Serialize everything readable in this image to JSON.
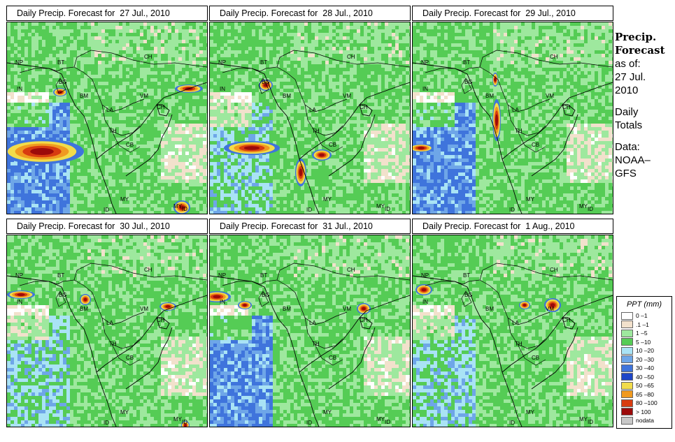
{
  "panels": [
    {
      "title": "Daily Precip. Forecast for  27 Jul., 2010"
    },
    {
      "title": "Daily Precip. Forecast for  28 Jul., 2010"
    },
    {
      "title": "Daily Precip. Forecast for  29 Jul., 2010"
    },
    {
      "title": "Daily Precip. Forecast for  30 Jul., 2010"
    },
    {
      "title": "Daily Precip. Forecast for  31 Jul., 2010"
    },
    {
      "title": "Daily Precip. Forecast for  1 Aug., 2010"
    }
  ],
  "map_labels": [
    "NP",
    "BT",
    "BG",
    "IN",
    "BM",
    "CH",
    "VM",
    "LA",
    "TH",
    "CB",
    "CH",
    "MY",
    "MY",
    "ID",
    "ID"
  ],
  "info": {
    "heading1": "Precip.",
    "heading2": "Forecast",
    "line1": "as of:",
    "line2": "27 Jul.",
    "line3": "2010",
    "line4": "Daily",
    "line5": "Totals",
    "line6": "Data:",
    "line7": "NOAA–",
    "line8": "GFS"
  },
  "legend": {
    "title": "PPT (mm)",
    "items": [
      {
        "label": "0 –1",
        "color": "#ffffff"
      },
      {
        "label": ".1 –1",
        "color": "#f2e1cc"
      },
      {
        "label": "1 –5",
        "color": "#9ee89e"
      },
      {
        "label": "5 –10",
        "color": "#55cc55"
      },
      {
        "label": "10 –20",
        "color": "#a9e3f5"
      },
      {
        "label": "20 –30",
        "color": "#6ea6e8"
      },
      {
        "label": "30 –40",
        "color": "#3f74dc"
      },
      {
        "label": "40 –50",
        "color": "#1f46c8"
      },
      {
        "label": "50 –65",
        "color": "#f2dc4a"
      },
      {
        "label": "65 –80",
        "color": "#f09a20"
      },
      {
        "label": "80 –100",
        "color": "#d83c10"
      },
      {
        "label": "> 100",
        "color": "#9c0a0a"
      },
      {
        "label": "nodata",
        "color": "#c8c8c8"
      }
    ]
  },
  "colors": {
    "land_green": "#55cc55",
    "light_green": "#9ee89e",
    "tan": "#f2e1cc",
    "light_blue": "#a9e3f5",
    "mid_blue": "#6ea6e8",
    "blue": "#3f74dc",
    "deep_blue": "#1f46c8",
    "yellow": "#f2dc4a",
    "orange": "#f09a20",
    "red": "#d83c10",
    "dark_red": "#9c0a0a"
  }
}
